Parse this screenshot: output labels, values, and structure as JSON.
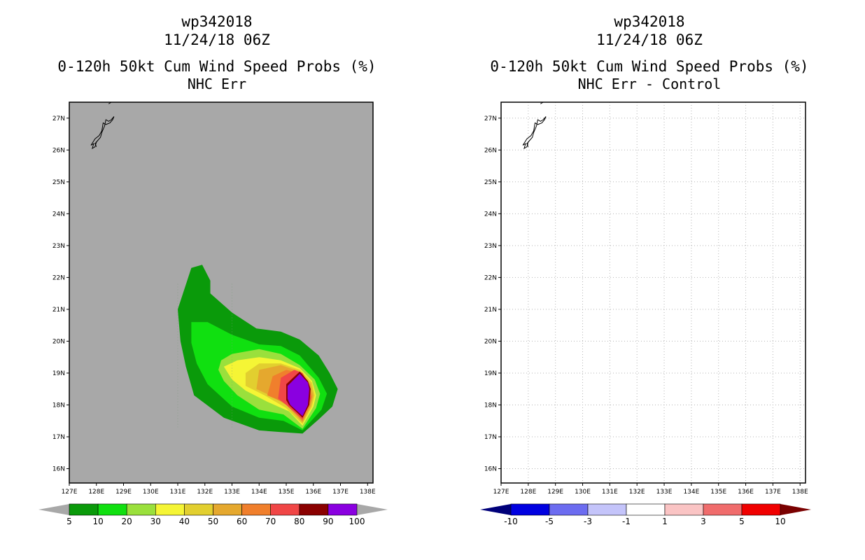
{
  "chart_data": [
    {
      "type": "contour-map",
      "storm_id": "wp342018",
      "datetime": "11/24/18 06Z",
      "title": "0-120h 50kt Cum Wind Speed Probs (%)",
      "subtitle": "NHC Err",
      "x_ticks": [
        "127E",
        "128E",
        "129E",
        "130E",
        "131E",
        "132E",
        "133E",
        "134E",
        "135E",
        "136E",
        "137E",
        "138E"
      ],
      "y_ticks": [
        "27N",
        "26N",
        "25N",
        "24N",
        "23N",
        "22N",
        "21N",
        "20N",
        "19N",
        "18N",
        "17N",
        "16N"
      ],
      "xlim": [
        127,
        138.2
      ],
      "ylim": [
        15.55,
        27.5
      ],
      "background_color": "#a8a8a8",
      "colorbar_labels": [
        "5",
        "10",
        "20",
        "30",
        "40",
        "50",
        "60",
        "70",
        "80",
        "90",
        "100"
      ],
      "colorbar_colors": [
        "#0a9a0a",
        "#10e010",
        "#9ae03c",
        "#f5f535",
        "#e2cf2f",
        "#e5a82e",
        "#f07f2c",
        "#f04646",
        "#8a0000",
        "#8a00e0"
      ],
      "colorbar_under": "#a8a8a8",
      "colorbar_over": "#a8a8a8",
      "contour_levels": [
        {
          "level": 5,
          "polygon": [
            [
              131.0,
              21.0
            ],
            [
              131.5,
              22.3
            ],
            [
              131.9,
              22.4
            ],
            [
              132.2,
              21.9
            ],
            [
              132.2,
              21.5
            ],
            [
              133.0,
              20.9
            ],
            [
              133.9,
              20.4
            ],
            [
              134.8,
              20.3
            ],
            [
              135.5,
              20.05
            ],
            [
              136.2,
              19.55
            ],
            [
              136.6,
              19.0
            ],
            [
              136.9,
              18.5
            ],
            [
              136.7,
              17.95
            ],
            [
              136.2,
              17.55
            ],
            [
              135.6,
              17.1
            ],
            [
              134.8,
              17.15
            ],
            [
              134.0,
              17.2
            ],
            [
              132.7,
              17.6
            ],
            [
              131.6,
              18.3
            ],
            [
              131.3,
              19.2
            ],
            [
              131.1,
              20.0
            ],
            [
              131.0,
              21.0
            ]
          ]
        },
        {
          "level": 10,
          "polygon": [
            [
              131.5,
              19.95
            ],
            [
              131.5,
              20.6
            ],
            [
              132.1,
              20.6
            ],
            [
              133.0,
              20.2
            ],
            [
              134.0,
              19.9
            ],
            [
              134.8,
              19.85
            ],
            [
              135.5,
              19.55
            ],
            [
              136.2,
              18.85
            ],
            [
              136.5,
              18.35
            ],
            [
              136.3,
              17.85
            ],
            [
              135.6,
              17.2
            ],
            [
              134.9,
              17.5
            ],
            [
              134.0,
              17.6
            ],
            [
              133.0,
              17.95
            ],
            [
              132.1,
              18.65
            ],
            [
              131.7,
              19.3
            ],
            [
              131.5,
              19.95
            ]
          ]
        },
        {
          "level": 20,
          "polygon": [
            [
              132.5,
              19.1
            ],
            [
              132.6,
              19.4
            ],
            [
              133.0,
              19.6
            ],
            [
              134.0,
              19.75
            ],
            [
              134.8,
              19.6
            ],
            [
              135.5,
              19.25
            ],
            [
              136.05,
              18.8
            ],
            [
              136.25,
              18.35
            ],
            [
              136.1,
              17.9
            ],
            [
              135.6,
              17.25
            ],
            [
              134.9,
              17.7
            ],
            [
              134.0,
              17.85
            ],
            [
              133.2,
              18.3
            ],
            [
              132.7,
              18.75
            ],
            [
              132.5,
              19.1
            ]
          ]
        },
        {
          "level": 30,
          "polygon": [
            [
              132.7,
              19.2
            ],
            [
              133.2,
              19.4
            ],
            [
              134.0,
              19.5
            ],
            [
              134.8,
              19.4
            ],
            [
              135.5,
              19.15
            ],
            [
              135.95,
              18.75
            ],
            [
              136.1,
              18.3
            ],
            [
              136.0,
              17.95
            ],
            [
              135.6,
              17.35
            ],
            [
              135.1,
              17.8
            ],
            [
              134.3,
              18.1
            ],
            [
              133.5,
              18.45
            ],
            [
              133.0,
              18.8
            ],
            [
              132.7,
              19.2
            ]
          ]
        },
        {
          "level": 40,
          "polygon": [
            [
              133.5,
              19.0
            ],
            [
              134.0,
              19.3
            ],
            [
              134.8,
              19.3
            ],
            [
              135.5,
              19.1
            ],
            [
              135.95,
              18.7
            ],
            [
              136.05,
              18.3
            ],
            [
              135.95,
              17.95
            ],
            [
              135.6,
              17.4
            ],
            [
              135.0,
              17.9
            ],
            [
              134.2,
              18.3
            ],
            [
              133.5,
              18.6
            ],
            [
              133.5,
              19.0
            ]
          ]
        },
        {
          "level": 50,
          "polygon": [
            [
              133.9,
              18.5
            ],
            [
              134.0,
              19.1
            ],
            [
              134.8,
              19.25
            ],
            [
              135.5,
              19.05
            ],
            [
              135.9,
              18.65
            ],
            [
              136.0,
              18.3
            ],
            [
              135.9,
              17.95
            ],
            [
              135.6,
              17.45
            ],
            [
              135.0,
              18.0
            ],
            [
              134.4,
              18.3
            ],
            [
              133.9,
              18.5
            ]
          ]
        },
        {
          "level": 60,
          "polygon": [
            [
              134.3,
              18.3
            ],
            [
              134.5,
              18.9
            ],
            [
              135.0,
              19.1
            ],
            [
              135.5,
              19.0
            ],
            [
              135.85,
              18.6
            ],
            [
              135.95,
              18.25
            ],
            [
              135.85,
              17.95
            ],
            [
              135.6,
              17.5
            ],
            [
              135.0,
              18.05
            ],
            [
              134.3,
              18.3
            ]
          ]
        },
        {
          "level": 70,
          "polygon": [
            [
              134.7,
              18.2
            ],
            [
              134.8,
              18.85
            ],
            [
              135.3,
              19.1
            ],
            [
              135.6,
              19.0
            ],
            [
              135.85,
              18.6
            ],
            [
              135.9,
              18.2
            ],
            [
              135.8,
              17.95
            ],
            [
              135.6,
              17.55
            ],
            [
              135.0,
              18.0
            ],
            [
              134.7,
              18.2
            ]
          ]
        },
        {
          "level": 80,
          "polygon": [
            [
              135.0,
              18.15
            ],
            [
              135.0,
              18.65
            ],
            [
              135.5,
              19.05
            ],
            [
              135.8,
              18.75
            ],
            [
              135.9,
              18.5
            ],
            [
              135.85,
              18.0
            ],
            [
              135.6,
              17.6
            ],
            [
              135.1,
              18.0
            ],
            [
              135.0,
              18.15
            ]
          ]
        },
        {
          "level": 90,
          "polygon": [
            [
              135.05,
              18.2
            ],
            [
              135.05,
              18.6
            ],
            [
              135.5,
              18.98
            ],
            [
              135.8,
              18.7
            ],
            [
              135.85,
              18.5
            ],
            [
              135.8,
              18.0
            ],
            [
              135.6,
              17.65
            ],
            [
              135.15,
              18.0
            ],
            [
              135.05,
              18.2
            ]
          ]
        }
      ]
    },
    {
      "type": "contour-map",
      "storm_id": "wp342018",
      "datetime": "11/24/18 06Z",
      "title": "0-120h 50kt Cum Wind Speed Probs (%)",
      "subtitle": "NHC Err - Control",
      "x_ticks": [
        "127E",
        "128E",
        "129E",
        "130E",
        "131E",
        "132E",
        "133E",
        "134E",
        "135E",
        "136E",
        "137E",
        "138E"
      ],
      "y_ticks": [
        "27N",
        "26N",
        "25N",
        "24N",
        "23N",
        "22N",
        "21N",
        "20N",
        "19N",
        "18N",
        "17N",
        "16N"
      ],
      "xlim": [
        127,
        138.2
      ],
      "ylim": [
        15.55,
        27.5
      ],
      "background_color": "#ffffff",
      "grid": true,
      "colorbar_labels": [
        "-10",
        "-5",
        "-3",
        "-1",
        "1",
        "3",
        "5",
        "10"
      ],
      "colorbar_colors": [
        "#0000e0",
        "#6c6cf0",
        "#c4c4fa",
        "#ffffff",
        "#fac4c4",
        "#f06c6c",
        "#f00000"
      ],
      "colorbar_under": "#00007a",
      "colorbar_over": "#7a0000",
      "contour_levels": []
    }
  ]
}
